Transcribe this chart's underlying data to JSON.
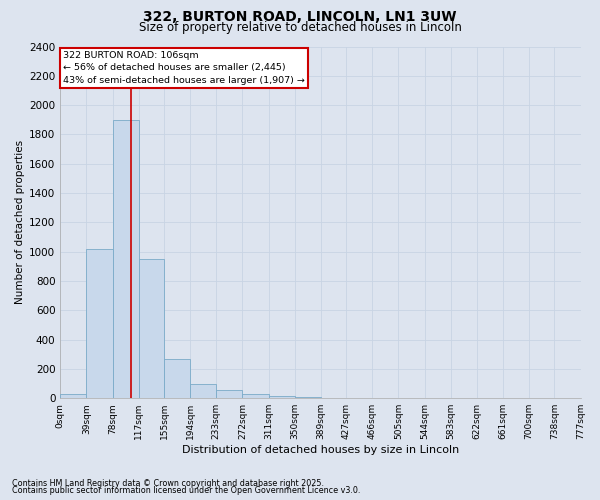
{
  "title": "322, BURTON ROAD, LINCOLN, LN1 3UW",
  "subtitle": "Size of property relative to detached houses in Lincoln",
  "xlabel": "Distribution of detached houses by size in Lincoln",
  "ylabel": "Number of detached properties",
  "bar_edges": [
    0,
    39,
    78,
    117,
    155,
    194,
    233,
    272,
    311,
    350,
    389,
    427,
    466,
    505,
    544,
    583,
    622,
    661,
    700,
    738,
    777
  ],
  "bar_values": [
    30,
    1020,
    1900,
    950,
    270,
    100,
    55,
    30,
    15,
    5,
    0,
    0,
    0,
    0,
    0,
    0,
    0,
    0,
    0,
    0
  ],
  "bar_color": "#c8d8eb",
  "bar_edge_color": "#7aaac8",
  "grid_color": "#c8d4e4",
  "bg_color": "#dde4ef",
  "property_line_x": 106,
  "annotation_text": "322 BURTON ROAD: 106sqm\n← 56% of detached houses are smaller (2,445)\n43% of semi-detached houses are larger (1,907) →",
  "annotation_box_color": "#ffffff",
  "annotation_box_edge": "#cc0000",
  "red_line_color": "#cc0000",
  "ylim": [
    0,
    2400
  ],
  "yticks": [
    0,
    200,
    400,
    600,
    800,
    1000,
    1200,
    1400,
    1600,
    1800,
    2000,
    2200,
    2400
  ],
  "tick_labels": [
    "0sqm",
    "39sqm",
    "78sqm",
    "117sqm",
    "155sqm",
    "194sqm",
    "233sqm",
    "272sqm",
    "311sqm",
    "350sqm",
    "389sqm",
    "427sqm",
    "466sqm",
    "505sqm",
    "544sqm",
    "583sqm",
    "622sqm",
    "661sqm",
    "700sqm",
    "738sqm",
    "777sqm"
  ],
  "footer_line1": "Contains HM Land Registry data © Crown copyright and database right 2025.",
  "footer_line2": "Contains public sector information licensed under the Open Government Licence v3.0."
}
